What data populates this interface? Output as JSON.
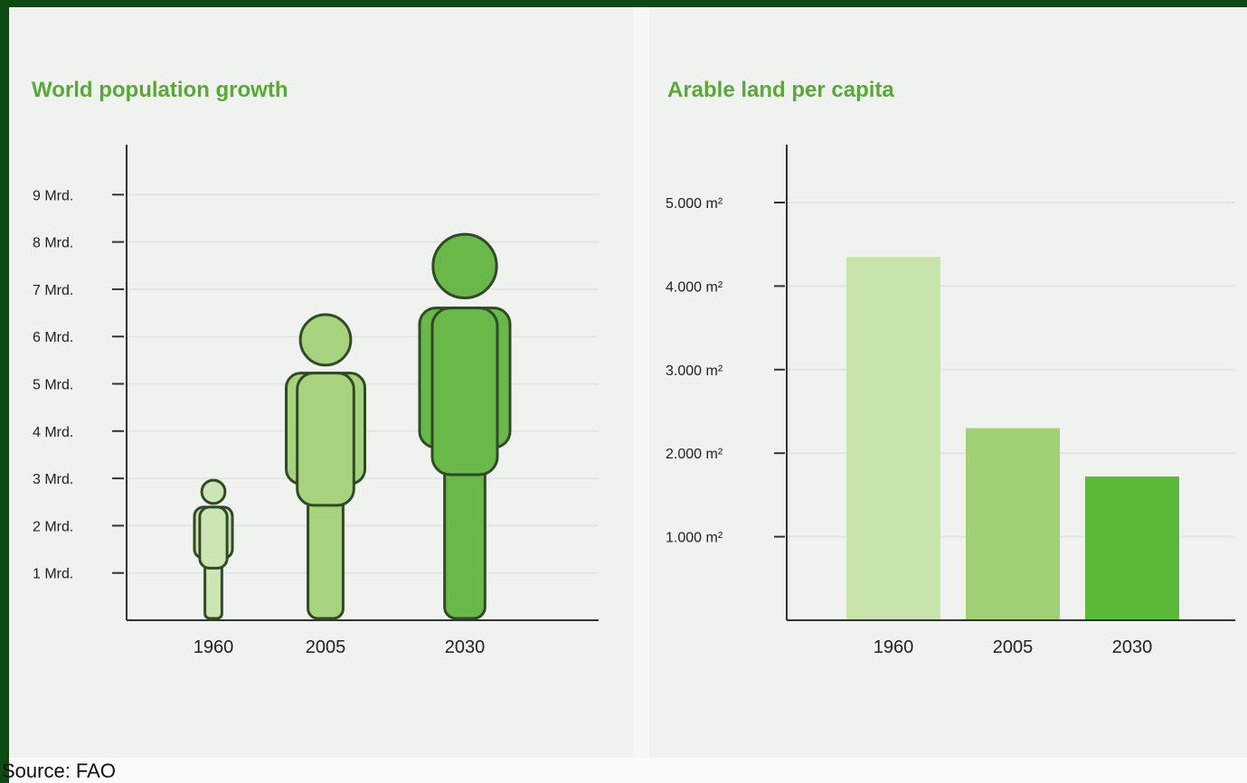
{
  "source": "Source: FAO",
  "colors": {
    "fig_light": "#cde4b4",
    "fig_mid": "#a9d27f",
    "fig_dark": "#6ab74a",
    "bar_light": "#c8e4aa",
    "bar_mid": "#9fd073",
    "bar_dark": "#5cb838",
    "title": "#5aa83a"
  },
  "chart_data": [
    {
      "type": "bar",
      "title": "World population growth",
      "categories": [
        "1960",
        "2005",
        "2030"
      ],
      "values": [
        3,
        6.5,
        8.2
      ],
      "tick_labels": [
        "1 Mrd.",
        "2 Mrd.",
        "3 Mrd.",
        "4 Mrd.",
        "5 Mrd.",
        "6 Mrd.",
        "7 Mrd.",
        "8 Mrd.",
        "9 Mrd."
      ],
      "tick_values": [
        1,
        2,
        3,
        4,
        5,
        6,
        7,
        8,
        9
      ],
      "ylim": [
        0,
        9.5
      ],
      "marker": "human-figure",
      "grid": true
    },
    {
      "type": "bar",
      "title": "Arable land per capita",
      "categories": [
        "1960",
        "2005",
        "2030"
      ],
      "values": [
        4350,
        2300,
        1720
      ],
      "tick_labels": [
        "1.000 m²",
        "2.000 m²",
        "3.000 m²",
        "4.000 m²",
        "5.000 m²"
      ],
      "tick_values": [
        1000,
        2000,
        3000,
        4000,
        5000
      ],
      "ylim": [
        0,
        5500
      ],
      "grid": true
    }
  ]
}
